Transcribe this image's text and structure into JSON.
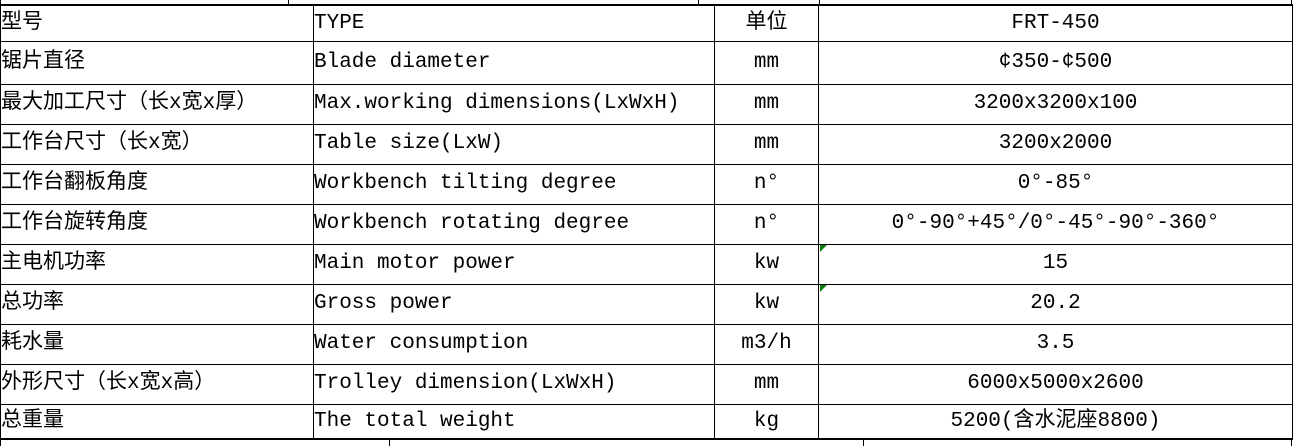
{
  "colors": {
    "border": "#000000",
    "background": "#FFFFFF",
    "error_indicator_green": "#0C7D0C",
    "text": "#000000"
  },
  "table": {
    "columns": [
      "型号(中文)",
      "TYPE(English)",
      "单位(unit)",
      "FRT-450(value)"
    ],
    "rows": [
      {
        "cn": "型号",
        "en": "TYPE",
        "unit": "单位",
        "value": "FRT-450",
        "error_indicator": false
      },
      {
        "cn": "锯片直径",
        "en": "Blade diameter",
        "unit": "mm",
        "value": "¢350-¢500",
        "error_indicator": false
      },
      {
        "cn": "最大加工尺寸（长x宽x厚）",
        "en": "Max.working dimensions(LxWxH)",
        "unit": "mm",
        "value": "3200x3200x100",
        "error_indicator": false
      },
      {
        "cn": "工作台尺寸（长x宽）",
        "en": "Table size(LxW)",
        "unit": "mm",
        "value": "3200x2000",
        "error_indicator": false
      },
      {
        "cn": "工作台翻板角度",
        "en": "Workbench tilting degree",
        "unit": "n°",
        "value": "0°-85°",
        "error_indicator": false
      },
      {
        "cn": "工作台旋转角度",
        "en": "Workbench rotating degree",
        "unit": "n°",
        "value": "0°-90°+45°/0°-45°-90°-360°",
        "error_indicator": false
      },
      {
        "cn": "主电机功率",
        "en": "Main motor power",
        "unit": "kw",
        "value": "15",
        "error_indicator": true
      },
      {
        "cn": "总功率",
        "en": "Gross power",
        "unit": "kw",
        "value": "20.2",
        "error_indicator": true
      },
      {
        "cn": "耗水量",
        "en": "Water consumption",
        "unit": "m3/h",
        "value": "3.5",
        "error_indicator": false
      },
      {
        "cn": "外形尺寸（长x宽x高）",
        "en": "Trolley dimension(LxWxH)",
        "unit": "mm",
        "value": "6000x5000x2600",
        "error_indicator": false
      },
      {
        "cn": "总重量",
        "en": "The total weight",
        "unit": "kg",
        "value": "5200(含水泥座8800)",
        "error_indicator": false
      }
    ]
  }
}
